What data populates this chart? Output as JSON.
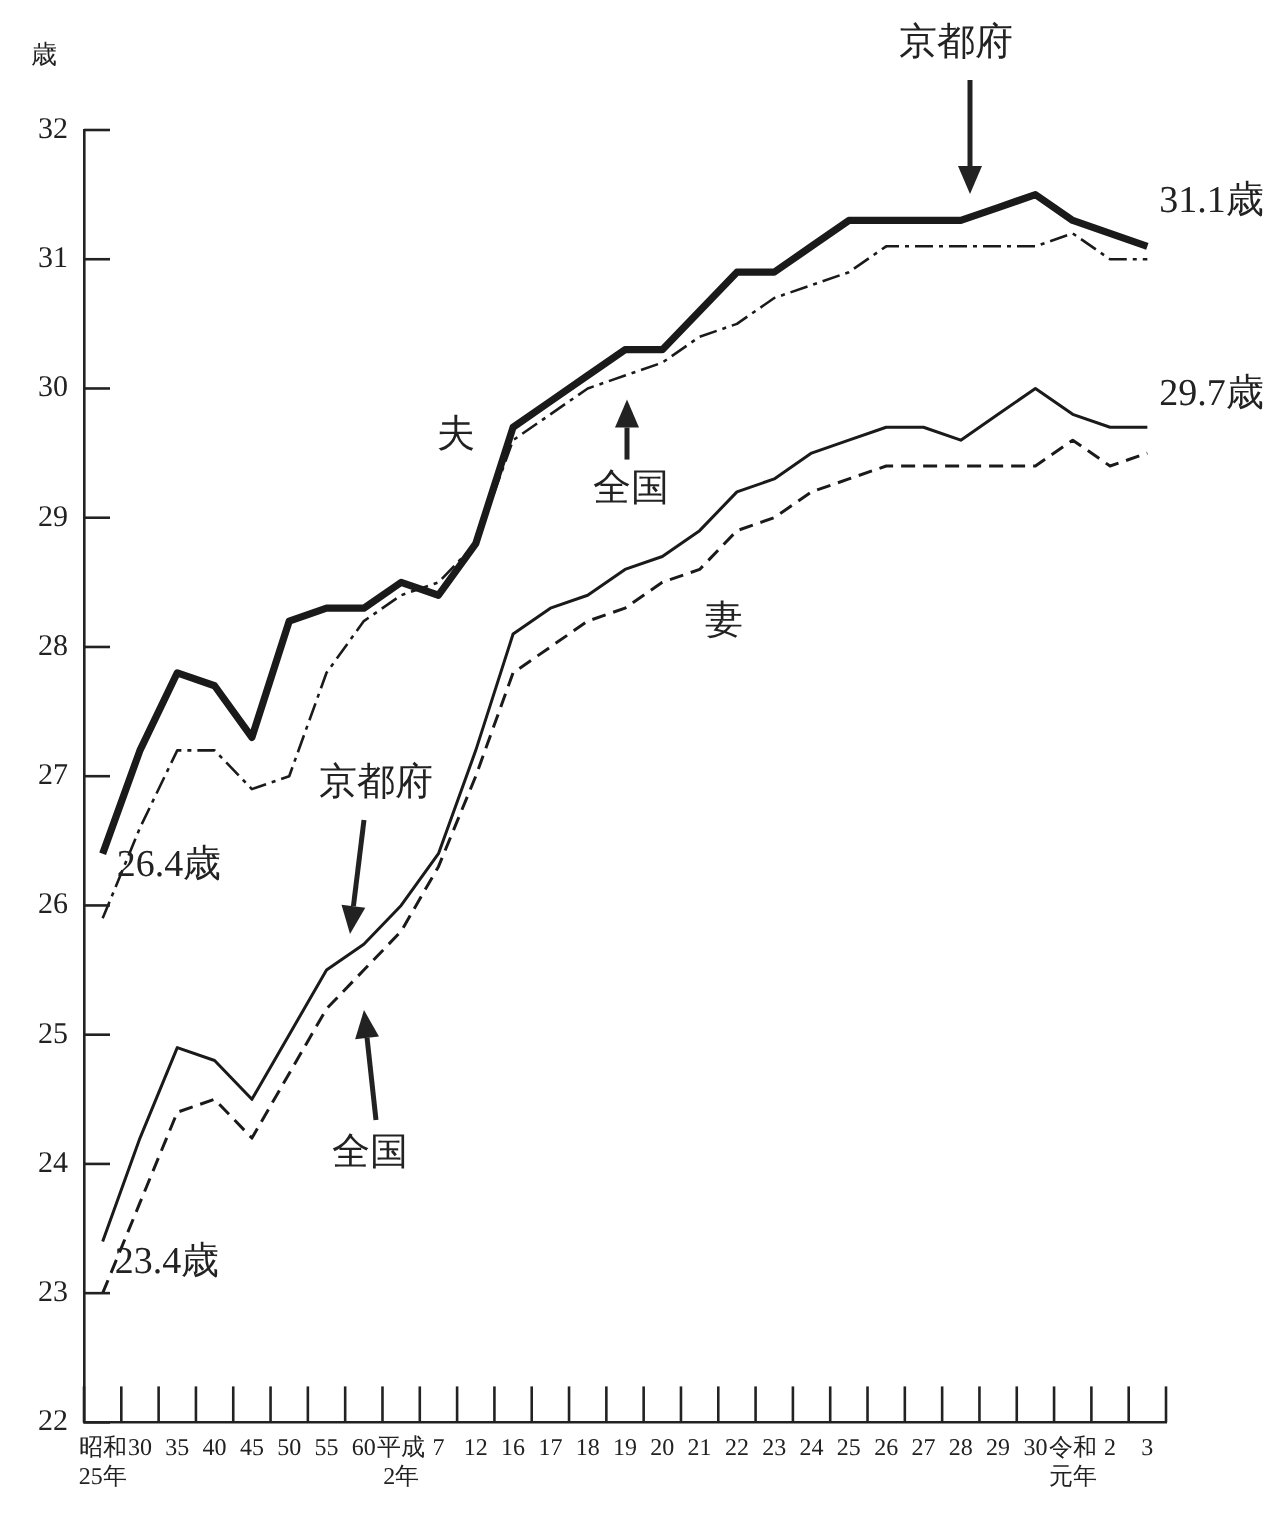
{
  "chart_data": {
    "type": "line",
    "ylabel": "歳",
    "categories": [
      "昭和25年",
      "30",
      "35",
      "40",
      "45",
      "50",
      "55",
      "60",
      "平成2年",
      "7",
      "12",
      "16",
      "17",
      "18",
      "19",
      "20",
      "21",
      "22",
      "23",
      "24",
      "25",
      "26",
      "27",
      "28",
      "29",
      "30",
      "令和元年",
      "2",
      "3"
    ],
    "series": [
      {
        "color": "#1a1a1a",
        "line_style": "solid",
        "values": [
          26.4,
          27.2,
          27.8,
          27.7,
          27.3,
          28.2,
          28.3,
          28.3,
          28.5,
          28.4,
          28.8,
          29.7,
          29.9,
          30.1,
          30.3,
          30.3,
          30.6,
          30.9,
          30.9,
          31.1,
          31.3,
          31.3,
          31.3,
          31.3,
          31.4,
          31.5,
          31.3,
          31.2,
          31.1
        ]
      },
      {
        "color": "#1a1a1a",
        "line_style": "dashdot",
        "values": [
          25.9,
          26.6,
          27.2,
          27.2,
          26.9,
          27.0,
          27.8,
          28.2,
          28.4,
          28.5,
          28.8,
          29.6,
          29.8,
          30.0,
          30.1,
          30.2,
          30.4,
          30.5,
          30.7,
          30.8,
          30.9,
          31.1,
          31.1,
          31.1,
          31.1,
          31.1,
          31.2,
          31.0,
          31.0
        ]
      },
      {
        "color": "#1a1a1a",
        "line_style": "solid",
        "values": [
          23.4,
          24.2,
          24.9,
          24.8,
          24.5,
          25.0,
          25.5,
          25.7,
          26.0,
          26.4,
          27.2,
          28.1,
          28.3,
          28.4,
          28.6,
          28.7,
          28.9,
          29.2,
          29.3,
          29.5,
          29.6,
          29.7,
          29.7,
          29.6,
          29.8,
          30.0,
          29.8,
          29.7,
          29.7
        ]
      },
      {
        "color": "#1a1a1a",
        "line_style": "dashed",
        "values": [
          23.0,
          23.7,
          24.4,
          24.5,
          24.2,
          24.7,
          25.2,
          25.5,
          25.8,
          26.3,
          27.0,
          27.8,
          28.0,
          28.2,
          28.3,
          28.5,
          28.6,
          28.9,
          29.0,
          29.2,
          29.3,
          29.4,
          29.4,
          29.4,
          29.4,
          29.4,
          29.6,
          29.4,
          29.5
        ]
      }
    ],
    "ylim": [
      22,
      32
    ],
    "yticks": [
      22,
      23,
      24,
      25,
      26,
      27,
      28,
      29,
      30,
      31,
      32
    ],
    "grid": false,
    "legend": false,
    "marker": "none",
    "annotations": [
      "京都府",
      {
        "text": "全国",
        "x": "19",
        "y": 30.1
      },
      {
        "text": "31.1歳",
        "x": "3",
        "y": 31.1
      },
      {
        "text": "29.7歳",
        "x": "3",
        "y": 29.7
      },
      {
        "text": "26.4歳",
        "x": "昭和25年",
        "y": 26.4
      },
      {
        "text": "23.4歳",
        "x": "昭和25年",
        "y": 23.4
      },
      "京都府",
      "全国",
      "夫",
      "妻"
    ]
  }
}
